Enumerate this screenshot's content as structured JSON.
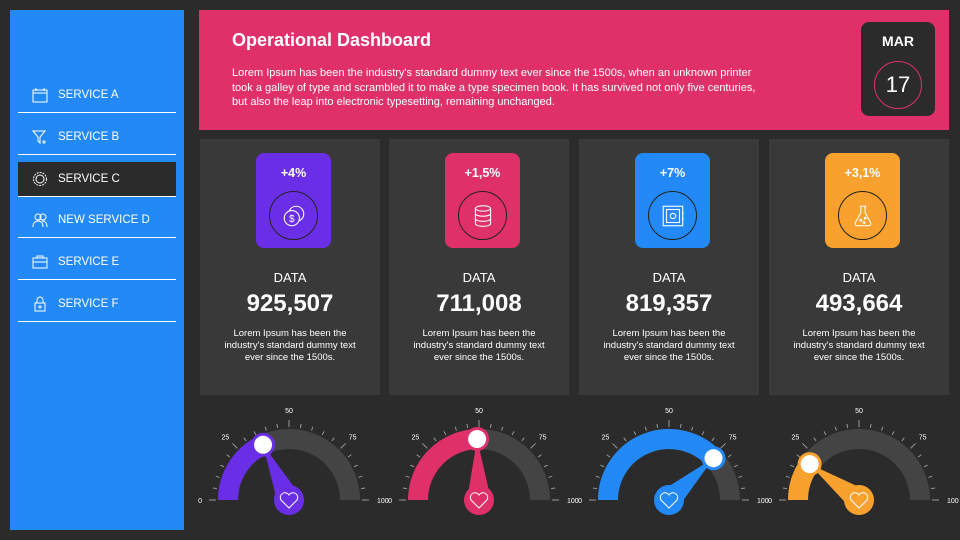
{
  "sidebar": {
    "items": [
      {
        "label": "SERVICE A",
        "icon": "calendar-icon"
      },
      {
        "label": "SERVICE B",
        "icon": "funnel-icon"
      },
      {
        "label": "SERVICE C",
        "icon": "gear-icon",
        "selected": true
      },
      {
        "label": "NEW SERVICE D",
        "icon": "users-icon"
      },
      {
        "label": "SERVICE E",
        "icon": "toolbox-icon"
      },
      {
        "label": "SERVICE F",
        "icon": "lock-icon"
      }
    ]
  },
  "header": {
    "title": "Operational Dashboard",
    "description": "Lorem Ipsum has been the industry's standard dummy text ever since the 1500s, when an unknown printer took a galley of type and scrambled it to make a type specimen book. It has survived not only five centuries, but also the leap into electronic typesetting, remaining unchanged.",
    "month": "MAR",
    "day": "17"
  },
  "cards": [
    {
      "change": "+4%",
      "label": "DATA",
      "value": "925,507",
      "text": "Lorem Ipsum has been the industry's standard dummy text ever since the 1500s.",
      "color": "#6a2ee6",
      "icon": "coins-icon"
    },
    {
      "change": "+1,5%",
      "label": "DATA",
      "value": "711,008",
      "text": "Lorem Ipsum has been the industry's standard dummy text ever since the 1500s.",
      "color": "#e0306a",
      "icon": "database-icon"
    },
    {
      "change": "+7%",
      "label": "DATA",
      "value": "819,357",
      "text": "Lorem Ipsum has been the industry's standard dummy text ever since the 1500s.",
      "color": "#2389f7",
      "icon": "safe-icon"
    },
    {
      "change": "+3,1%",
      "label": "DATA",
      "value": "493,664",
      "text": "Lorem Ipsum has been the industry's standard dummy text ever since the 1500s.",
      "color": "#f9a12e",
      "icon": "flask-icon"
    }
  ],
  "gauges": {
    "ticks": [
      "0",
      "25",
      "50",
      "75",
      "100"
    ],
    "values": [
      36,
      49,
      76,
      20
    ],
    "colors": [
      "#6a2ee6",
      "#e0306a",
      "#2389f7",
      "#f9a12e"
    ],
    "icon": "heart-icon"
  }
}
